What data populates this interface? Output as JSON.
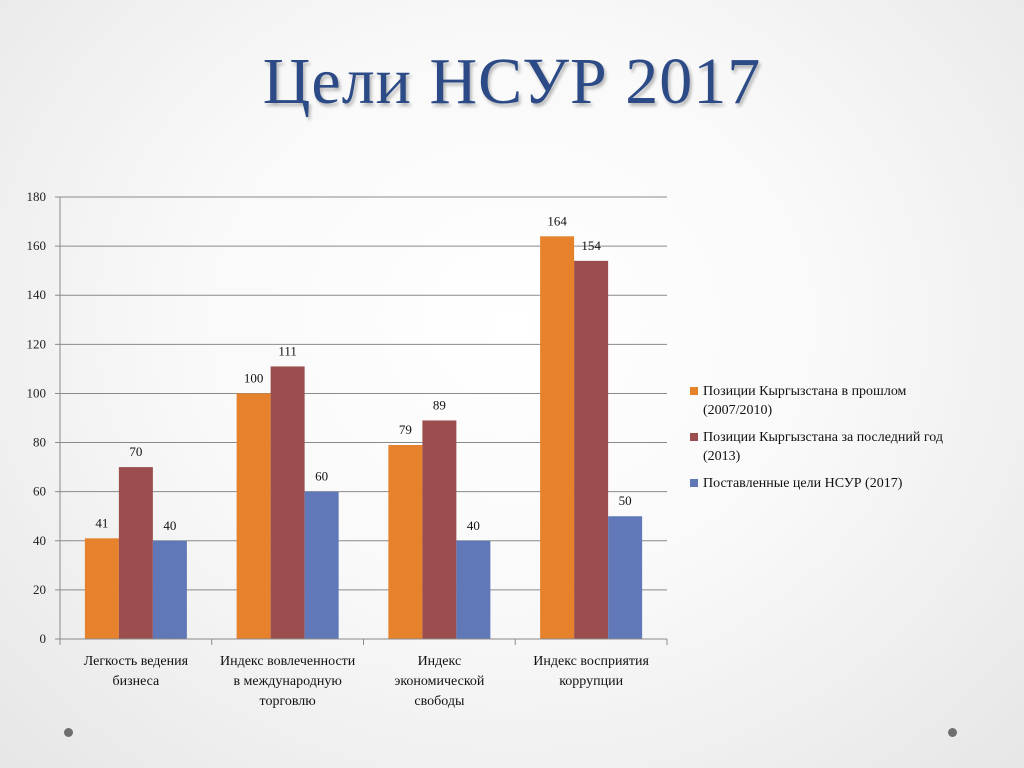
{
  "slide": {
    "title": "Цели НСУР 2017"
  },
  "colors": {
    "title": "#2b4a86",
    "series": [
      "#e5822b",
      "#9c4e4e",
      "#6078b8"
    ]
  },
  "chart_data": {
    "type": "bar",
    "categories": [
      [
        "Легкость ведения",
        "бизнеса"
      ],
      [
        "Индекс вовлеченности",
        "в международную",
        "торговлю"
      ],
      [
        "Индекс",
        "экономической",
        "свободы"
      ],
      [
        "Индекс восприятия",
        "коррупции"
      ]
    ],
    "series": [
      {
        "name": [
          "Позиции Кыргызстана в прошлом",
          "(2007/2010)"
        ],
        "values": [
          41,
          100,
          79,
          164
        ]
      },
      {
        "name": [
          "Позиции Кыргызстана за последний год",
          "(2013)"
        ],
        "values": [
          70,
          111,
          89,
          154
        ]
      },
      {
        "name": [
          "Поставленные цели НСУР (2017)"
        ],
        "values": [
          40,
          60,
          40,
          50
        ]
      }
    ],
    "ylim": [
      0,
      180
    ],
    "yticks": [
      0,
      20,
      40,
      60,
      80,
      100,
      120,
      140,
      160,
      180
    ],
    "grid": true,
    "legend": "right",
    "data_labels": true
  }
}
